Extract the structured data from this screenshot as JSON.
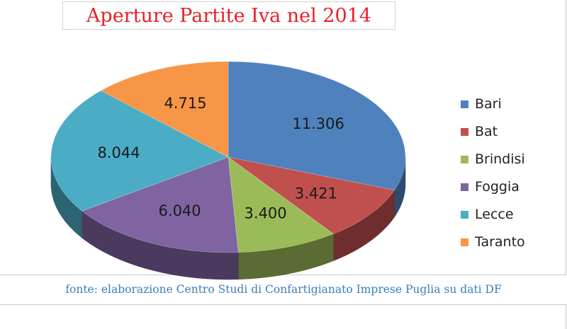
{
  "chart_data": {
    "type": "pie",
    "title": "Aperture Partite Iva nel 2014",
    "categories": [
      "Bari",
      "Bat",
      "Brindisi",
      "Foggia",
      "Lecce",
      "Taranto"
    ],
    "values": [
      11306,
      3421,
      3400,
      6040,
      8044,
      4715
    ],
    "value_labels": [
      "11.306",
      "3.421",
      "3.400",
      "6.040",
      "8.044",
      "4.715"
    ],
    "colors": [
      "#4f81bd",
      "#c0504d",
      "#9bbb59",
      "#8064a2",
      "#4bacc6",
      "#f79646"
    ],
    "style": "3d",
    "legend_position": "right"
  },
  "source_note": "fonte: elaborazione Centro Studi di Confartigianato Imprese Puglia su dati DF"
}
